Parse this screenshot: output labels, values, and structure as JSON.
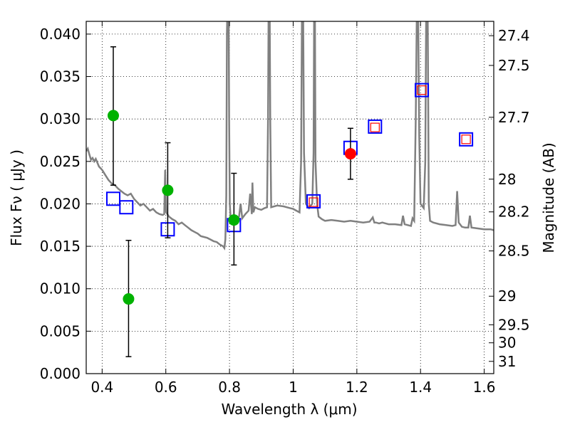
{
  "chart_data": {
    "type": "scatter",
    "xlabel": "Wavelength  λ (μm)",
    "ylabel": "Flux  Fν  ( μJy )",
    "y2label": "Magnitude (AB)",
    "xlim": [
      0.35,
      1.63
    ],
    "ylim": [
      0.0,
      0.0415
    ],
    "grid": true,
    "x_ticks": [
      {
        "value": 0.4,
        "label": "0.4"
      },
      {
        "value": 0.6,
        "label": "0.6"
      },
      {
        "value": 0.8,
        "label": "0.8"
      },
      {
        "value": 1.0,
        "label": "1"
      },
      {
        "value": 1.2,
        "label": "1.2"
      },
      {
        "value": 1.4,
        "label": "1.4"
      },
      {
        "value": 1.6,
        "label": "1.6"
      }
    ],
    "y_ticks": [
      {
        "value": 0.0,
        "label": "0.000"
      },
      {
        "value": 0.005,
        "label": "0.005"
      },
      {
        "value": 0.01,
        "label": "0.010"
      },
      {
        "value": 0.015,
        "label": "0.015"
      },
      {
        "value": 0.02,
        "label": "0.020"
      },
      {
        "value": 0.025,
        "label": "0.025"
      },
      {
        "value": 0.03,
        "label": "0.030"
      },
      {
        "value": 0.035,
        "label": "0.035"
      },
      {
        "value": 0.04,
        "label": "0.040"
      }
    ],
    "magnitude_ticks": [
      {
        "mag": 27.4,
        "label": "27.4"
      },
      {
        "mag": 27.5,
        "label": "27.5"
      },
      {
        "mag": 27.7,
        "label": "27.7"
      },
      {
        "mag": 28.0,
        "label": "28"
      },
      {
        "mag": 28.2,
        "label": "28.2"
      },
      {
        "mag": 28.5,
        "label": "28.5"
      },
      {
        "mag": 29.0,
        "label": "29"
      },
      {
        "mag": 29.5,
        "label": "29.5"
      },
      {
        "mag": 30.0,
        "label": "30"
      },
      {
        "mag": 31.0,
        "label": "31"
      }
    ],
    "sed_model": {
      "name": "model spectrum",
      "color": "#808080",
      "points": [
        [
          0.35,
          0.0262
        ],
        [
          0.355,
          0.0265
        ],
        [
          0.36,
          0.0258
        ],
        [
          0.365,
          0.0252
        ],
        [
          0.37,
          0.0254
        ],
        [
          0.375,
          0.025
        ],
        [
          0.38,
          0.0253
        ],
        [
          0.39,
          0.0244
        ],
        [
          0.4,
          0.024
        ],
        [
          0.41,
          0.0234
        ],
        [
          0.42,
          0.0228
        ],
        [
          0.43,
          0.0224
        ],
        [
          0.44,
          0.0222
        ],
        [
          0.45,
          0.0218
        ],
        [
          0.46,
          0.0215
        ],
        [
          0.47,
          0.0212
        ],
        [
          0.48,
          0.021
        ],
        [
          0.49,
          0.0212
        ],
        [
          0.5,
          0.0206
        ],
        [
          0.51,
          0.0202
        ],
        [
          0.52,
          0.0198
        ],
        [
          0.53,
          0.02
        ],
        [
          0.54,
          0.0196
        ],
        [
          0.55,
          0.0192
        ],
        [
          0.56,
          0.0194
        ],
        [
          0.57,
          0.019
        ],
        [
          0.58,
          0.0188
        ],
        [
          0.59,
          0.0187
        ],
        [
          0.595,
          0.0188
        ],
        [
          0.598,
          0.024
        ],
        [
          0.601,
          0.019
        ],
        [
          0.61,
          0.0185
        ],
        [
          0.62,
          0.0182
        ],
        [
          0.63,
          0.018
        ],
        [
          0.64,
          0.0176
        ],
        [
          0.65,
          0.0178
        ],
        [
          0.66,
          0.0175
        ],
        [
          0.67,
          0.0172
        ],
        [
          0.68,
          0.0169
        ],
        [
          0.69,
          0.0167
        ],
        [
          0.7,
          0.0165
        ],
        [
          0.71,
          0.0162
        ],
        [
          0.72,
          0.0161
        ],
        [
          0.73,
          0.016
        ],
        [
          0.74,
          0.0158
        ],
        [
          0.75,
          0.0156
        ],
        [
          0.76,
          0.0155
        ],
        [
          0.77,
          0.0152
        ],
        [
          0.78,
          0.015
        ],
        [
          0.784,
          0.0148
        ],
        [
          0.787,
          0.0158
        ],
        [
          0.79,
          0.021
        ],
        [
          0.792,
          0.04
        ],
        [
          0.794,
          0.045
        ],
        [
          0.797,
          0.045
        ],
        [
          0.799,
          0.03
        ],
        [
          0.801,
          0.02
        ],
        [
          0.804,
          0.018
        ],
        [
          0.81,
          0.0181
        ],
        [
          0.82,
          0.018
        ],
        [
          0.83,
          0.0185
        ],
        [
          0.835,
          0.02
        ],
        [
          0.84,
          0.0183
        ],
        [
          0.85,
          0.0188
        ],
        [
          0.86,
          0.0192
        ],
        [
          0.865,
          0.0212
        ],
        [
          0.87,
          0.0188
        ],
        [
          0.872,
          0.0225
        ],
        [
          0.875,
          0.019
        ],
        [
          0.88,
          0.0196
        ],
        [
          0.89,
          0.0194
        ],
        [
          0.9,
          0.0193
        ],
        [
          0.91,
          0.0195
        ],
        [
          0.918,
          0.0196
        ],
        [
          0.921,
          0.03
        ],
        [
          0.923,
          0.045
        ],
        [
          0.926,
          0.045
        ],
        [
          0.928,
          0.03
        ],
        [
          0.931,
          0.0196
        ],
        [
          0.95,
          0.0198
        ],
        [
          0.97,
          0.0197
        ],
        [
          0.99,
          0.0195
        ],
        [
          1.0,
          0.0194
        ],
        [
          1.01,
          0.0192
        ],
        [
          1.02,
          0.019
        ],
        [
          1.025,
          0.025
        ],
        [
          1.028,
          0.045
        ],
        [
          1.031,
          0.045
        ],
        [
          1.034,
          0.026
        ],
        [
          1.04,
          0.02
        ],
        [
          1.05,
          0.0195
        ],
        [
          1.055,
          0.0198
        ],
        [
          1.06,
          0.02
        ],
        [
          1.064,
          0.026
        ],
        [
          1.066,
          0.045
        ],
        [
          1.068,
          0.045
        ],
        [
          1.07,
          0.025
        ],
        [
          1.075,
          0.02
        ],
        [
          1.08,
          0.0185
        ],
        [
          1.09,
          0.0182
        ],
        [
          1.1,
          0.018
        ],
        [
          1.12,
          0.0181
        ],
        [
          1.14,
          0.018
        ],
        [
          1.16,
          0.0179
        ],
        [
          1.18,
          0.018
        ],
        [
          1.2,
          0.0179
        ],
        [
          1.22,
          0.0178
        ],
        [
          1.24,
          0.0179
        ],
        [
          1.25,
          0.0184
        ],
        [
          1.255,
          0.0178
        ],
        [
          1.26,
          0.0178
        ],
        [
          1.27,
          0.0177
        ],
        [
          1.28,
          0.0178
        ],
        [
          1.29,
          0.0177
        ],
        [
          1.3,
          0.0176
        ],
        [
          1.32,
          0.0176
        ],
        [
          1.34,
          0.0175
        ],
        [
          1.345,
          0.0186
        ],
        [
          1.35,
          0.0176
        ],
        [
          1.36,
          0.0175
        ],
        [
          1.37,
          0.0174
        ],
        [
          1.375,
          0.0183
        ],
        [
          1.38,
          0.018
        ],
        [
          1.385,
          0.03
        ],
        [
          1.389,
          0.045
        ],
        [
          1.392,
          0.045
        ],
        [
          1.396,
          0.028
        ],
        [
          1.4,
          0.02
        ],
        [
          1.41,
          0.0195
        ],
        [
          1.415,
          0.025
        ],
        [
          1.418,
          0.045
        ],
        [
          1.422,
          0.045
        ],
        [
          1.426,
          0.02
        ],
        [
          1.43,
          0.018
        ],
        [
          1.44,
          0.0178
        ],
        [
          1.46,
          0.0176
        ],
        [
          1.48,
          0.0175
        ],
        [
          1.5,
          0.0174
        ],
        [
          1.51,
          0.0175
        ],
        [
          1.515,
          0.0215
        ],
        [
          1.52,
          0.0178
        ],
        [
          1.53,
          0.0173
        ],
        [
          1.54,
          0.0172
        ],
        [
          1.55,
          0.0172
        ],
        [
          1.555,
          0.0186
        ],
        [
          1.56,
          0.0172
        ],
        [
          1.58,
          0.0171
        ],
        [
          1.6,
          0.017
        ],
        [
          1.62,
          0.017
        ],
        [
          1.63,
          0.0169
        ]
      ]
    },
    "series": [
      {
        "name": "observed photometry (green)",
        "color": "#00b200",
        "marker": "circle",
        "points": [
          {
            "x": 0.435,
            "y": 0.0304,
            "yerr_low": 0.0222,
            "yerr_high": 0.0385
          },
          {
            "x": 0.483,
            "y": 0.0088,
            "yerr_low": 0.002,
            "yerr_high": 0.0157
          },
          {
            "x": 0.606,
            "y": 0.0216,
            "yerr_low": 0.016,
            "yerr_high": 0.0272
          },
          {
            "x": 0.814,
            "y": 0.0181,
            "yerr_low": 0.0128,
            "yerr_high": 0.0236
          }
        ]
      },
      {
        "name": "observed photometry (red)",
        "color": "#ff0000",
        "marker": "circle",
        "points": [
          {
            "x": 1.18,
            "y": 0.0259,
            "yerr_low": 0.0229,
            "yerr_high": 0.0289
          }
        ]
      },
      {
        "name": "model photometry (blue squares)",
        "color": "#0000ff",
        "marker": "square",
        "points": [
          {
            "x": 0.435,
            "y": 0.0206
          },
          {
            "x": 0.476,
            "y": 0.0196
          },
          {
            "x": 0.606,
            "y": 0.017
          },
          {
            "x": 0.814,
            "y": 0.0175
          },
          {
            "x": 1.064,
            "y": 0.0203
          },
          {
            "x": 1.18,
            "y": 0.0266
          },
          {
            "x": 1.257,
            "y": 0.0291
          },
          {
            "x": 1.404,
            "y": 0.0334
          },
          {
            "x": 1.543,
            "y": 0.0276
          }
        ]
      },
      {
        "name": "model photometry (red squares)",
        "color": "#ff0000",
        "marker": "square-small",
        "points": [
          {
            "x": 1.064,
            "y": 0.0202
          },
          {
            "x": 1.257,
            "y": 0.029
          },
          {
            "x": 1.404,
            "y": 0.0334
          },
          {
            "x": 1.543,
            "y": 0.0276
          }
        ]
      }
    ]
  }
}
